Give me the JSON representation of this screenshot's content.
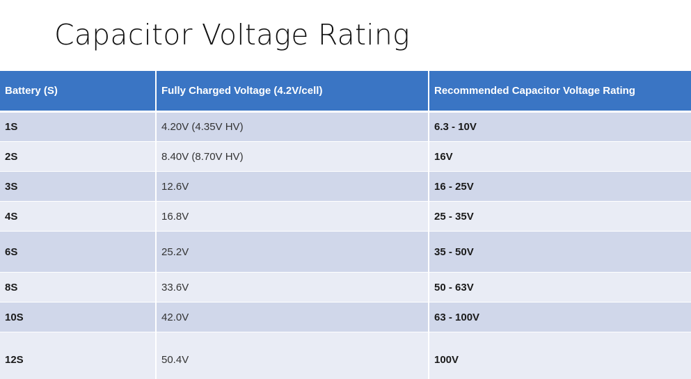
{
  "title": "Capacitor Voltage Rating",
  "table": {
    "headers": [
      "Battery (S)",
      "Fully Charged Voltage (4.2V/cell)",
      "Recommended Capacitor Voltage Rating"
    ],
    "rows": [
      {
        "battery": "1S",
        "voltage": "4.20V (4.35V HV)",
        "rating": "6.3 - 10V"
      },
      {
        "battery": "2S",
        "voltage": "8.40V (8.70V HV)",
        "rating": "16V"
      },
      {
        "battery": "3S",
        "voltage": "12.6V",
        "rating": "16 - 25V"
      },
      {
        "battery": "4S",
        "voltage": "16.8V",
        "rating": "25 - 35V"
      },
      {
        "battery": "6S",
        "voltage": "25.2V",
        "rating": "35 - 50V"
      },
      {
        "battery": "8S",
        "voltage": "33.6V",
        "rating": "50 - 63V"
      },
      {
        "battery": "10S",
        "voltage": "42.0V",
        "rating": "63 - 100V"
      },
      {
        "battery": "12S",
        "voltage": "50.4V",
        "rating": "100V"
      }
    ]
  },
  "colors": {
    "header_bg": "#3a75c4",
    "row_dark": "#d0d7ea",
    "row_light": "#e9ecf5"
  }
}
